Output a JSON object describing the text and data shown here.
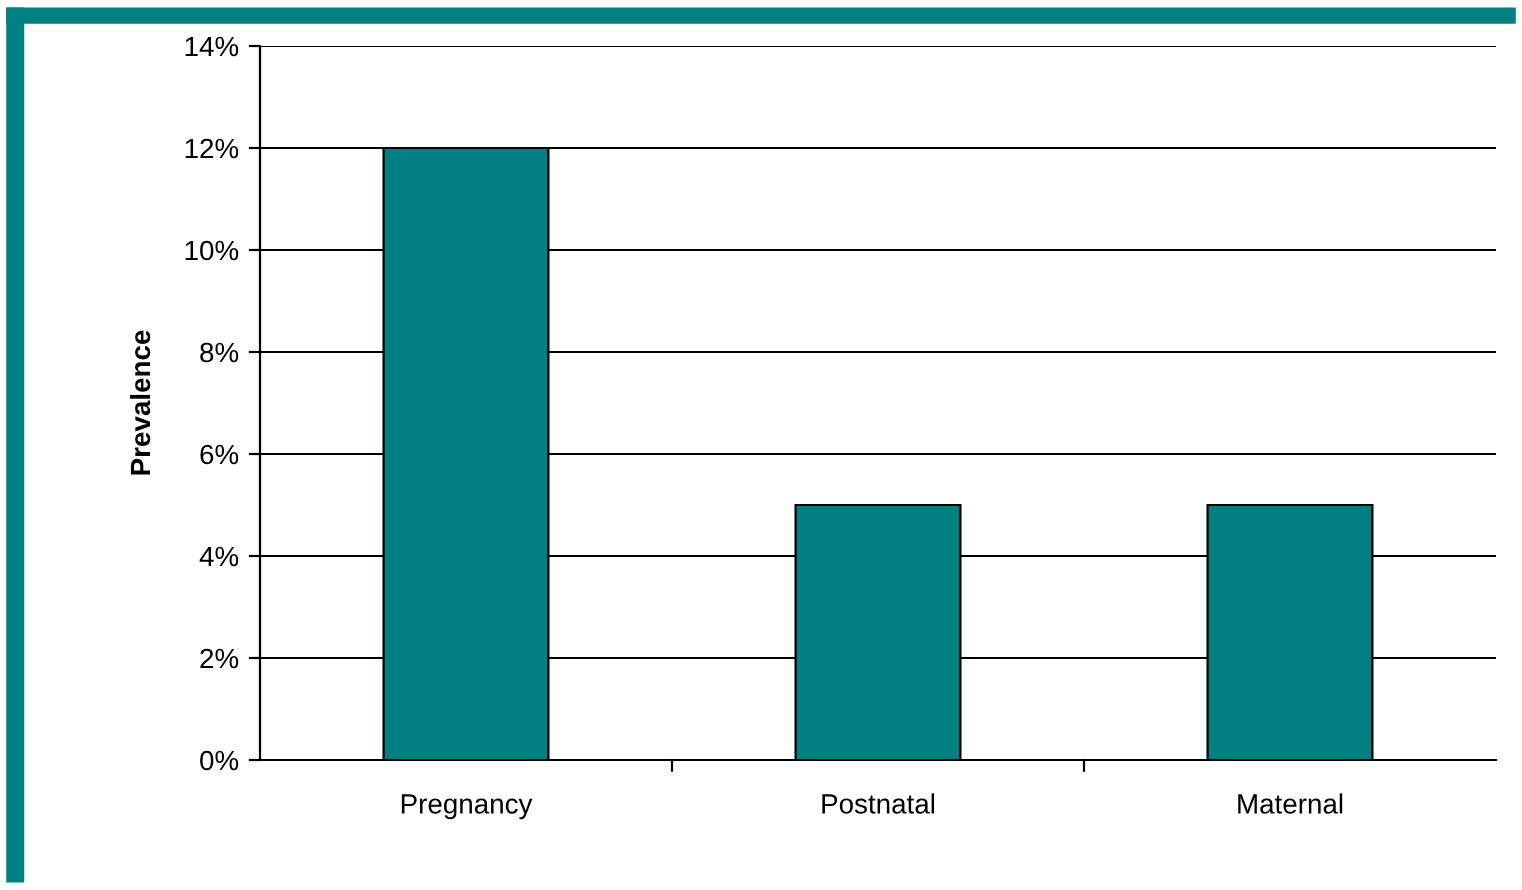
{
  "chart_data": {
    "type": "bar",
    "ylabel": "Prevalence",
    "categories": [
      "Pregnancy",
      "Postnatal",
      "Maternal"
    ],
    "values": [
      0.12,
      0.05,
      0.05
    ],
    "color": "#008080",
    "ylim": [
      0,
      0.14
    ],
    "yticks": [
      {
        "value": 0,
        "label": "0%"
      },
      {
        "value": 0.02,
        "label": "2%"
      },
      {
        "value": 0.04,
        "label": "4%"
      },
      {
        "value": 0.06,
        "label": "6%"
      },
      {
        "value": 0.08,
        "label": "8%"
      },
      {
        "value": 0.1,
        "label": "10%"
      },
      {
        "value": 0.12,
        "label": "12%"
      },
      {
        "value": 0.14,
        "label": "14%"
      }
    ],
    "grid": "y",
    "legend": false
  }
}
